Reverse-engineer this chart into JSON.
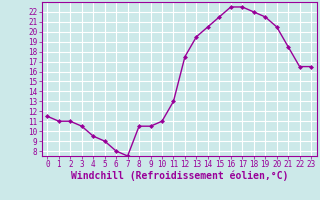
{
  "x": [
    0,
    1,
    2,
    3,
    4,
    5,
    6,
    7,
    8,
    9,
    10,
    11,
    12,
    13,
    14,
    15,
    16,
    17,
    18,
    19,
    20,
    21,
    22,
    23
  ],
  "y": [
    11.5,
    11.0,
    11.0,
    10.5,
    9.5,
    9.0,
    8.0,
    7.5,
    10.5,
    10.5,
    11.0,
    13.0,
    17.5,
    19.5,
    20.5,
    21.5,
    22.5,
    22.5,
    22.0,
    21.5,
    20.5,
    18.5,
    16.5,
    16.5
  ],
  "line_color": "#990099",
  "marker": "D",
  "marker_size": 2,
  "bg_color": "#cce9e9",
  "grid_color": "#ffffff",
  "xlabel": "Windchill (Refroidissement éolien,°C)",
  "xlabel_color": "#990099",
  "tick_color": "#990099",
  "ylim": [
    7.5,
    23.0
  ],
  "xlim": [
    -0.5,
    23.5
  ],
  "yticks": [
    8,
    9,
    10,
    11,
    12,
    13,
    14,
    15,
    16,
    17,
    18,
    19,
    20,
    21,
    22
  ],
  "xticks": [
    0,
    1,
    2,
    3,
    4,
    5,
    6,
    7,
    8,
    9,
    10,
    11,
    12,
    13,
    14,
    15,
    16,
    17,
    18,
    19,
    20,
    21,
    22,
    23
  ],
  "tick_fontsize": 5.5,
  "xlabel_fontsize": 7.0,
  "linewidth": 1.0
}
